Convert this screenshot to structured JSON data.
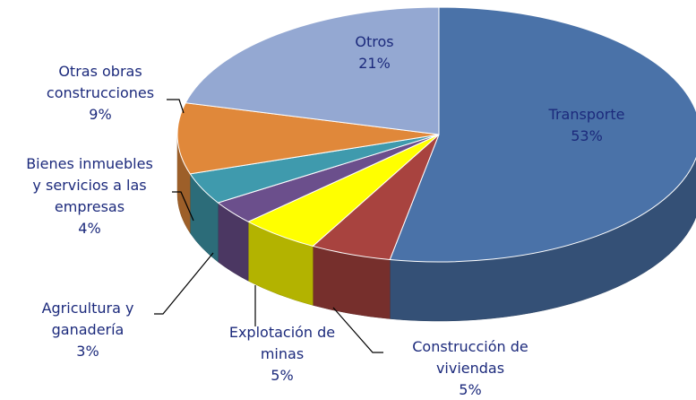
{
  "chart_data": {
    "type": "pie3d",
    "categories": [
      "Transporte",
      "Construcción de\nviviendas",
      "Explotación de\nminas",
      "Agricultura y\nganadería",
      "Bienes inmuebles\ny servicios a las\nempresas",
      "Otras obras\nconstrucciones",
      "Otros"
    ],
    "values": [
      53,
      5,
      5,
      3,
      4,
      9,
      21
    ],
    "value_labels": [
      "53%",
      "5%",
      "5%",
      "3%",
      "4%",
      "9%",
      "21%"
    ],
    "colors": [
      "#4a72a8",
      "#a8433f",
      "#ffff00",
      "#6b4f8c",
      "#3f9aad",
      "#e0883a",
      "#94a8d2"
    ]
  }
}
